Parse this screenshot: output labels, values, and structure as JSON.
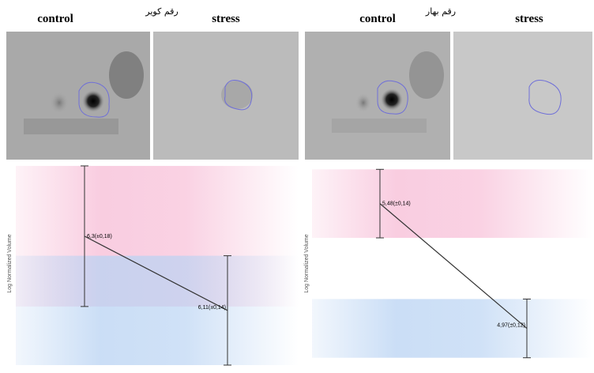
{
  "chart_data": [
    {
      "type": "line",
      "title": "رقم کویر",
      "categories": [
        "control",
        "stress"
      ],
      "y_label": "Log Normalized Volume",
      "ylim": [
        5.97,
        6.49
      ],
      "band_colors": [
        "#f7bcd6",
        "#b9d3f3"
      ],
      "series": [
        {
          "color": "#333333",
          "values": [
            6.3,
            6.11
          ],
          "errors": [
            0.18,
            0.14
          ],
          "value_labels": [
            "6,3(±0,18)",
            "6,11(±0,14)"
          ]
        }
      ]
    },
    {
      "type": "line",
      "title": "رقم بهار",
      "categories": [
        "control",
        "stress"
      ],
      "y_label": "Log Normalized Volume",
      "ylim": [
        4.82,
        5.65
      ],
      "band_colors": [
        "#f7bcd6",
        "#b9d3f3"
      ],
      "series": [
        {
          "color": "#333333",
          "values": [
            5.48,
            4.97
          ],
          "errors": [
            0.14,
            0.12
          ],
          "value_labels": [
            "5,48(±0,14)",
            "4,97(±0,12)"
          ]
        }
      ]
    }
  ]
}
